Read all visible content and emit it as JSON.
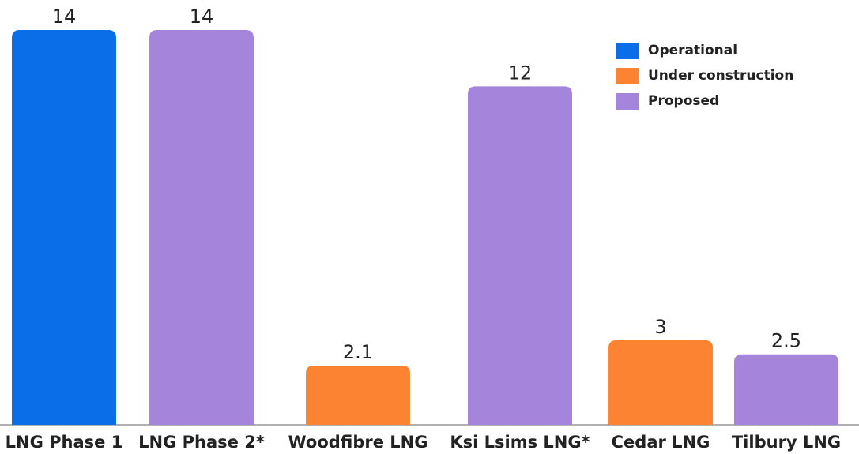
{
  "chart_data": {
    "type": "bar",
    "categories": [
      "LNG Phase 1",
      "LNG Phase 2*",
      "Woodfibre LNG",
      "Ksi Lsims LNG*",
      "Cedar LNG",
      "Tilbury LNG"
    ],
    "series": [
      {
        "name": "Operational",
        "color": "#0a6ee8",
        "values": [
          14,
          null,
          null,
          null,
          null,
          null
        ]
      },
      {
        "name": "Under construction",
        "color": "#fb8332",
        "values": [
          null,
          null,
          2.1,
          null,
          3,
          null
        ]
      },
      {
        "name": "Proposed",
        "color": "#a585dc",
        "values": [
          null,
          14,
          null,
          12,
          null,
          2.5
        ]
      }
    ],
    "legend": "upper right"
  }
}
